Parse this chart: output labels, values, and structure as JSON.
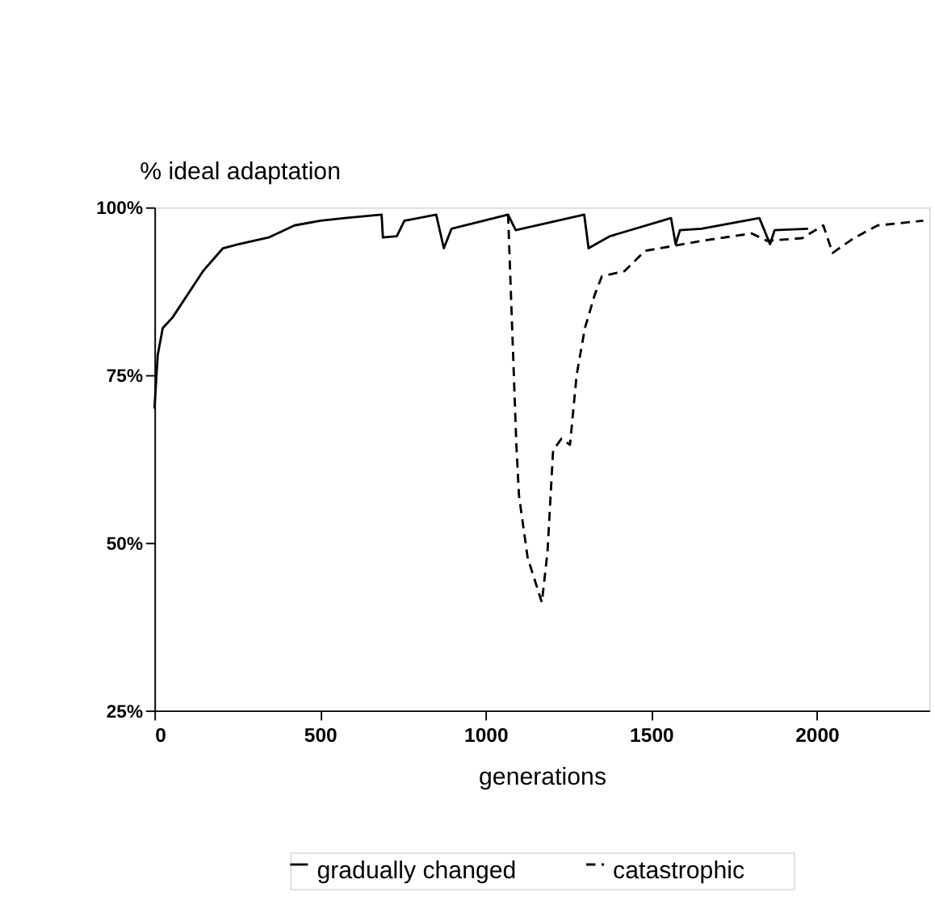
{
  "chart_data": {
    "type": "line",
    "xlabel": "generations",
    "ylabel": "% ideal adaptation",
    "xlim": [
      0,
      2340
    ],
    "xticks": [
      0,
      500,
      1000,
      1500,
      2000
    ],
    "ylim": [
      25,
      100
    ],
    "yticks": [
      {
        "value": 25,
        "label": "25%"
      },
      {
        "value": 50,
        "label": "50%"
      },
      {
        "value": 75,
        "label": "75%"
      },
      {
        "value": 100,
        "label": "100%"
      }
    ],
    "grid": false,
    "legend": "bottom",
    "marker": "none",
    "series": [
      {
        "name": "gradually changed",
        "color": "#000000",
        "line_style": "solid",
        "x": [
          0,
          10,
          25,
          55,
          147,
          207,
          253,
          345,
          423,
          502,
          575,
          686,
          690,
          732,
          755,
          851,
          874,
          897,
          1068,
          1091,
          1298,
          1311,
          1376,
          1560,
          1574,
          1587,
          1652,
          1827,
          1859,
          1873,
          1974
        ],
        "values": [
          70,
          78,
          82,
          83.6,
          90.5,
          93.9,
          94.5,
          95.5,
          97.3,
          98,
          98.4,
          98.9,
          95.5,
          95.7,
          98,
          98.9,
          93.9,
          96.8,
          98.9,
          96.6,
          98.9,
          93.9,
          95.7,
          98.4,
          94.5,
          96.6,
          96.8,
          98.4,
          94.5,
          96.6,
          96.8
        ]
      },
      {
        "name": "catastrophic",
        "color": "#000000",
        "line_style": "dashed",
        "x": [
          1068,
          1093,
          1101,
          1127,
          1170,
          1187,
          1204,
          1229,
          1255,
          1275,
          1300,
          1330,
          1351,
          1420,
          1481,
          1574,
          1652,
          1804,
          1850,
          1956,
          2020,
          2048,
          2112,
          2184,
          2322
        ],
        "values": [
          98.9,
          64.6,
          57,
          47.8,
          41.1,
          48.6,
          63.8,
          65.5,
          64.6,
          75,
          82,
          87,
          89.7,
          90.5,
          93.5,
          94.3,
          95,
          96.1,
          95,
          95.4,
          97.3,
          93.2,
          95.4,
          97.3,
          98
        ]
      }
    ]
  }
}
